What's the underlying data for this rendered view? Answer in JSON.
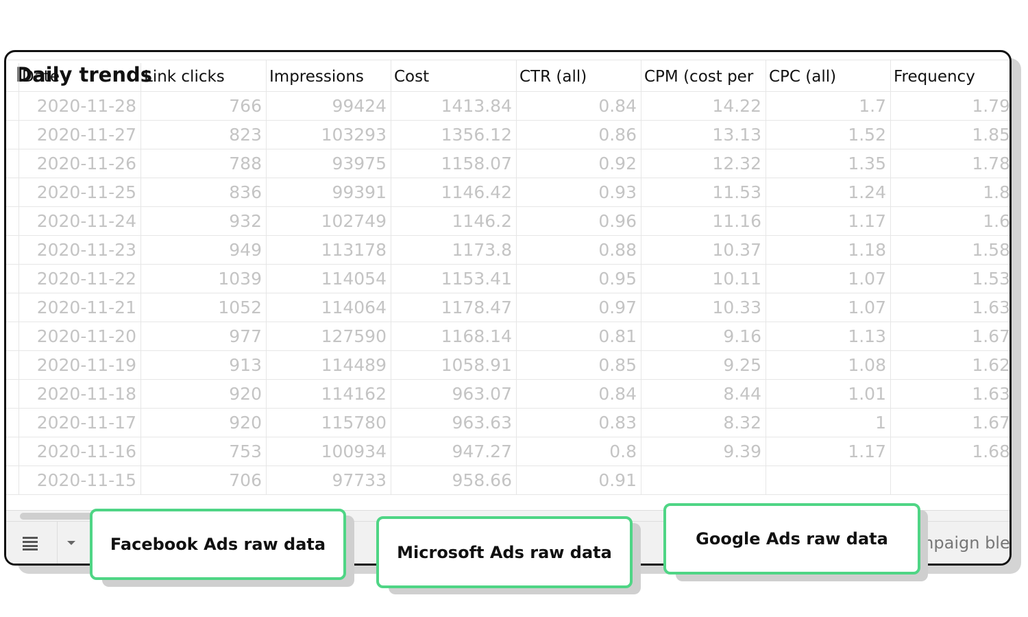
{
  "sheet": {
    "title": "Daily trends",
    "headers": [
      "Date",
      "Link clicks",
      "Impressions",
      "Cost",
      "CTR (all)",
      "CPM (cost per",
      "CPC (all)",
      "Frequency"
    ],
    "rows": [
      [
        "2020-11-28",
        "766",
        "99424",
        "1413.84",
        "0.84",
        "14.22",
        "1.7",
        "1.79"
      ],
      [
        "2020-11-27",
        "823",
        "103293",
        "1356.12",
        "0.86",
        "13.13",
        "1.52",
        "1.85"
      ],
      [
        "2020-11-26",
        "788",
        "93975",
        "1158.07",
        "0.92",
        "12.32",
        "1.35",
        "1.78"
      ],
      [
        "2020-11-25",
        "836",
        "99391",
        "1146.42",
        "0.93",
        "11.53",
        "1.24",
        "1.8"
      ],
      [
        "2020-11-24",
        "932",
        "102749",
        "1146.2",
        "0.96",
        "11.16",
        "1.17",
        "1.6"
      ],
      [
        "2020-11-23",
        "949",
        "113178",
        "1173.8",
        "0.88",
        "10.37",
        "1.18",
        "1.58"
      ],
      [
        "2020-11-22",
        "1039",
        "114054",
        "1153.41",
        "0.95",
        "10.11",
        "1.07",
        "1.53"
      ],
      [
        "2020-11-21",
        "1052",
        "114064",
        "1178.47",
        "0.97",
        "10.33",
        "1.07",
        "1.63"
      ],
      [
        "2020-11-20",
        "977",
        "127590",
        "1168.14",
        "0.81",
        "9.16",
        "1.13",
        "1.67"
      ],
      [
        "2020-11-19",
        "913",
        "114489",
        "1058.91",
        "0.85",
        "9.25",
        "1.08",
        "1.62"
      ],
      [
        "2020-11-18",
        "920",
        "114162",
        "963.07",
        "0.84",
        "8.44",
        "1.01",
        "1.63"
      ],
      [
        "2020-11-17",
        "920",
        "115780",
        "963.63",
        "0.83",
        "8.32",
        "1",
        "1.67"
      ],
      [
        "2020-11-16",
        "753",
        "100934",
        "947.27",
        "0.8",
        "9.39",
        "1.17",
        "1.68"
      ],
      [
        "2020-11-15",
        "706",
        "97733",
        "958.66",
        "0.91"
      ]
    ]
  },
  "tabs": [
    "mpaign ble"
  ],
  "callouts": [
    "Facebook Ads raw data",
    "Microsoft Ads raw data",
    "Google Ads raw data"
  ]
}
